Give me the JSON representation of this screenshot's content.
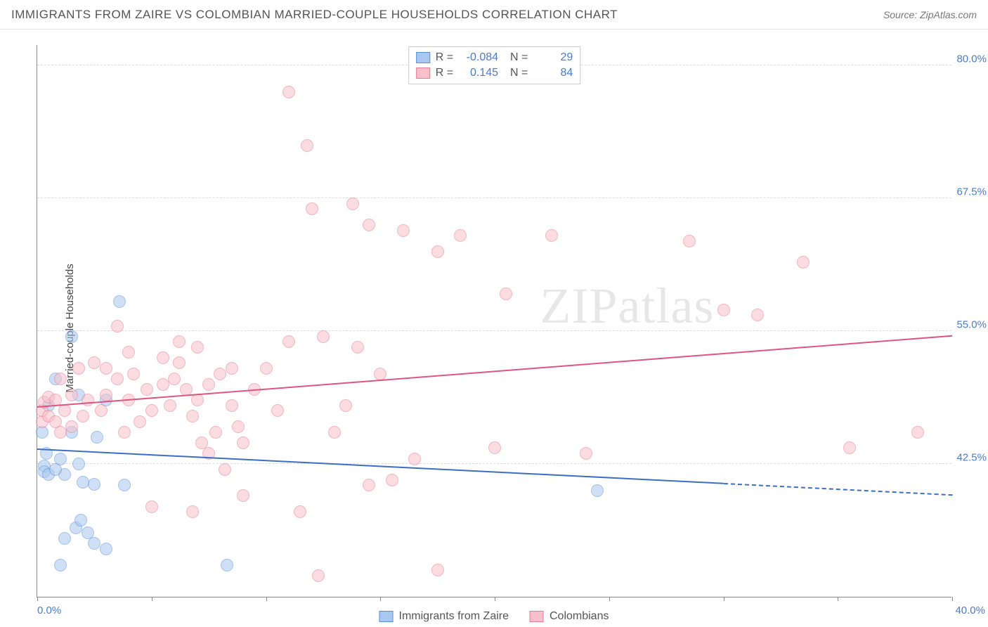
{
  "title": "IMMIGRANTS FROM ZAIRE VS COLOMBIAN MARRIED-COUPLE HOUSEHOLDS CORRELATION CHART",
  "source": "Source: ZipAtlas.com",
  "watermark": "ZIPatlas",
  "chart": {
    "type": "scatter",
    "ylabel": "Married-couple Households",
    "xlim": [
      0,
      40
    ],
    "ylim": [
      30,
      82
    ],
    "yticks": [
      42.5,
      55.0,
      67.5,
      80.0
    ],
    "ytick_labels": [
      "42.5%",
      "55.0%",
      "67.5%",
      "80.0%"
    ],
    "xtick_positions": [
      0,
      5,
      10,
      15,
      20,
      25,
      30,
      35,
      40
    ],
    "xtick_labels_shown": {
      "0": "0.0%",
      "40": "40.0%"
    },
    "background_color": "#ffffff",
    "grid_color": "#dddddd",
    "axis_color": "#888888",
    "tick_label_color": "#4a7bd0",
    "point_radius": 9,
    "series": [
      {
        "name": "Immigrants from Zaire",
        "fill_color": "#a8c8f0",
        "stroke_color": "#5a8fd8",
        "fill_opacity": 0.55,
        "R": "-0.084",
        "N": "29",
        "trend": {
          "x1": 0,
          "y1": 43.8,
          "x2": 40,
          "y2": 39.5,
          "solid_until_x": 30,
          "color": "#3b6fc4",
          "width": 2
        },
        "points": [
          [
            0.3,
            42.3
          ],
          [
            0.3,
            41.8
          ],
          [
            0.5,
            41.5
          ],
          [
            0.4,
            43.5
          ],
          [
            1.0,
            43.0
          ],
          [
            1.2,
            41.5
          ],
          [
            0.5,
            48.0
          ],
          [
            0.8,
            50.5
          ],
          [
            1.8,
            49.0
          ],
          [
            1.5,
            45.5
          ],
          [
            2.5,
            40.6
          ],
          [
            2.0,
            40.8
          ],
          [
            2.6,
            45.0
          ],
          [
            3.0,
            48.5
          ],
          [
            3.8,
            40.5
          ],
          [
            1.7,
            36.5
          ],
          [
            1.9,
            37.2
          ],
          [
            1.2,
            35.5
          ],
          [
            2.2,
            36.0
          ],
          [
            2.5,
            35.0
          ],
          [
            3.0,
            34.5
          ],
          [
            1.0,
            33.0
          ],
          [
            3.6,
            57.8
          ],
          [
            1.5,
            54.5
          ],
          [
            8.3,
            33.0
          ],
          [
            24.5,
            40.0
          ],
          [
            0.2,
            45.5
          ],
          [
            0.8,
            42.0
          ],
          [
            1.8,
            42.5
          ]
        ]
      },
      {
        "name": "Colombians",
        "fill_color": "#f8c0cc",
        "stroke_color": "#e87a95",
        "fill_opacity": 0.55,
        "R": "0.145",
        "N": "84",
        "trend": {
          "x1": 0,
          "y1": 47.8,
          "x2": 40,
          "y2": 54.5,
          "solid_until_x": 40,
          "color": "#e05580",
          "width": 2
        },
        "points": [
          [
            0.2,
            46.5
          ],
          [
            0.2,
            47.5
          ],
          [
            0.3,
            48.3
          ],
          [
            0.5,
            47.0
          ],
          [
            0.5,
            48.8
          ],
          [
            0.8,
            46.5
          ],
          [
            0.8,
            48.5
          ],
          [
            1.2,
            47.5
          ],
          [
            1.0,
            45.5
          ],
          [
            1.5,
            46.0
          ],
          [
            1.5,
            49.0
          ],
          [
            2.0,
            47.0
          ],
          [
            2.2,
            48.5
          ],
          [
            2.8,
            47.5
          ],
          [
            3.0,
            49.0
          ],
          [
            3.5,
            50.5
          ],
          [
            3.8,
            45.5
          ],
          [
            4.0,
            48.5
          ],
          [
            4.5,
            46.5
          ],
          [
            4.8,
            49.5
          ],
          [
            5.0,
            47.5
          ],
          [
            5.5,
            50.0
          ],
          [
            5.8,
            48.0
          ],
          [
            6.0,
            50.5
          ],
          [
            6.2,
            52.0
          ],
          [
            6.5,
            49.5
          ],
          [
            6.8,
            47.0
          ],
          [
            7.0,
            48.5
          ],
          [
            7.2,
            44.5
          ],
          [
            7.5,
            50.0
          ],
          [
            7.8,
            45.5
          ],
          [
            8.0,
            51.0
          ],
          [
            8.5,
            48.0
          ],
          [
            8.8,
            46.0
          ],
          [
            9.0,
            44.5
          ],
          [
            9.5,
            49.5
          ],
          [
            10.0,
            51.5
          ],
          [
            10.5,
            47.5
          ],
          [
            5.0,
            38.5
          ],
          [
            6.8,
            38.0
          ],
          [
            7.5,
            43.5
          ],
          [
            8.2,
            42.0
          ],
          [
            9.0,
            39.5
          ],
          [
            3.0,
            51.5
          ],
          [
            4.0,
            53.0
          ],
          [
            5.5,
            52.5
          ],
          [
            6.2,
            54.0
          ],
          [
            7.0,
            53.5
          ],
          [
            8.5,
            51.5
          ],
          [
            11.0,
            54.0
          ],
          [
            12.5,
            54.5
          ],
          [
            13.5,
            48.0
          ],
          [
            14.0,
            53.5
          ],
          [
            14.5,
            40.5
          ],
          [
            15.0,
            51.0
          ],
          [
            15.5,
            41.0
          ],
          [
            16.5,
            43.0
          ],
          [
            13.0,
            45.5
          ],
          [
            11.5,
            38.0
          ],
          [
            12.0,
            66.5
          ],
          [
            13.8,
            67.0
          ],
          [
            14.5,
            65.0
          ],
          [
            16.0,
            64.5
          ],
          [
            17.5,
            62.5
          ],
          [
            18.5,
            64.0
          ],
          [
            20.0,
            44.0
          ],
          [
            20.5,
            58.5
          ],
          [
            22.5,
            64.0
          ],
          [
            24.0,
            43.5
          ],
          [
            28.5,
            63.5
          ],
          [
            30.0,
            57.0
          ],
          [
            31.5,
            56.5
          ],
          [
            33.5,
            61.5
          ],
          [
            35.5,
            44.0
          ],
          [
            38.5,
            45.5
          ],
          [
            11.0,
            77.5
          ],
          [
            11.8,
            72.5
          ],
          [
            17.5,
            32.5
          ],
          [
            12.3,
            32.0
          ],
          [
            3.5,
            55.5
          ],
          [
            2.5,
            52.0
          ],
          [
            1.8,
            51.5
          ],
          [
            1.0,
            50.5
          ],
          [
            4.2,
            51.0
          ]
        ]
      }
    ],
    "legend_bottom": [
      {
        "swatch_fill": "#a8c8f0",
        "swatch_stroke": "#5a8fd8",
        "label": "Immigrants from Zaire"
      },
      {
        "swatch_fill": "#f8c0cc",
        "swatch_stroke": "#e87a95",
        "label": "Colombians"
      }
    ]
  }
}
